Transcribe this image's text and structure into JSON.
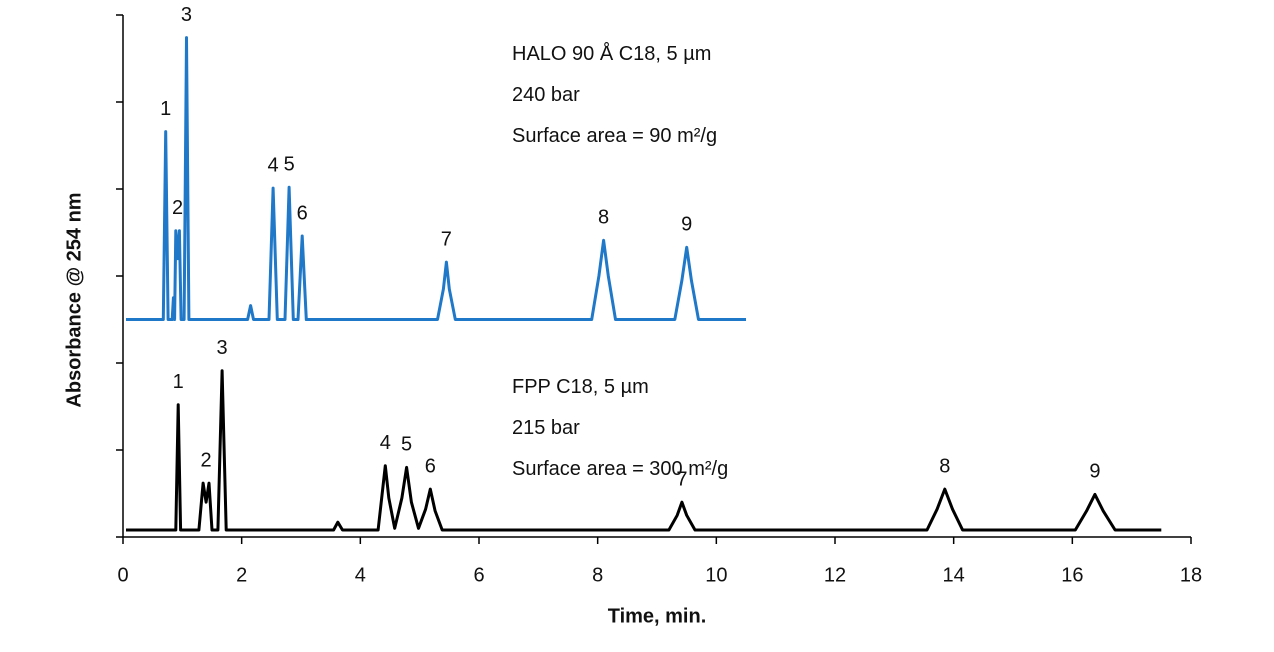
{
  "chart_data": {
    "type": "line",
    "xlabel": "Time, min.",
    "ylabel": "Absorbance @ 254 nm",
    "xlim": [
      0,
      18
    ],
    "xticks": [
      0,
      2,
      4,
      6,
      8,
      10,
      12,
      14,
      16,
      18
    ],
    "ylim": [
      0,
      6
    ],
    "yticks": [
      0,
      1,
      2,
      3,
      4,
      5,
      6
    ],
    "ytick_labels": false,
    "series": [
      {
        "color": "#1f78c8",
        "x": [
          0.05,
          0.68,
          0.72,
          0.76,
          0.83,
          0.85,
          0.87,
          0.89,
          0.92,
          0.95,
          0.98,
          1.03,
          1.07,
          1.11,
          2.1,
          2.15,
          2.2,
          2.46,
          2.53,
          2.6,
          2.73,
          2.8,
          2.87,
          2.95,
          3.02,
          3.09,
          5.3,
          5.4,
          5.45,
          5.5,
          5.6,
          7.9,
          8.02,
          8.1,
          8.18,
          8.3,
          9.3,
          9.42,
          9.5,
          9.58,
          9.7,
          10.5
        ],
        "values": [
          2.5,
          2.5,
          4.66,
          2.5,
          2.5,
          2.75,
          2.5,
          3.52,
          3.2,
          3.52,
          2.5,
          2.5,
          5.74,
          2.5,
          2.5,
          2.66,
          2.5,
          2.5,
          4.01,
          2.5,
          2.5,
          4.02,
          2.5,
          2.5,
          3.46,
          2.5,
          2.5,
          2.85,
          3.16,
          2.85,
          2.5,
          2.5,
          3.0,
          3.41,
          3.0,
          2.5,
          2.5,
          2.95,
          3.33,
          2.95,
          2.5,
          2.5
        ],
        "peaks": [
          {
            "label": "1",
            "x": 0.72
          },
          {
            "label": "2",
            "x": 0.92
          },
          {
            "label": "3",
            "x": 1.07
          },
          {
            "label": "4",
            "x": 2.53
          },
          {
            "label": "5",
            "x": 2.8
          },
          {
            "label": "6",
            "x": 3.02
          },
          {
            "label": "7",
            "x": 5.45
          },
          {
            "label": "8",
            "x": 8.1
          },
          {
            "label": "9",
            "x": 9.5
          }
        ],
        "annotation": [
          "HALO 90 Å C18, 5 µm",
          "240 bar",
          "Surface area = 90 m²/g"
        ]
      },
      {
        "color": "#000000",
        "x": [
          0.05,
          0.89,
          0.93,
          0.97,
          1.28,
          1.35,
          1.4,
          1.45,
          1.5,
          1.6,
          1.67,
          1.74,
          3.55,
          3.62,
          3.7,
          4.3,
          4.36,
          4.42,
          4.48,
          4.58,
          4.7,
          4.78,
          4.86,
          4.98,
          5.1,
          5.18,
          5.26,
          5.38,
          9.2,
          9.34,
          9.42,
          9.5,
          9.64,
          13.55,
          13.72,
          13.85,
          13.98,
          14.15,
          16.05,
          16.24,
          16.38,
          16.52,
          16.72,
          17.5
        ],
        "values": [
          0.08,
          0.08,
          1.52,
          0.08,
          0.08,
          0.62,
          0.4,
          0.62,
          0.08,
          0.08,
          1.91,
          0.08,
          0.08,
          0.17,
          0.08,
          0.08,
          0.45,
          0.82,
          0.45,
          0.1,
          0.45,
          0.8,
          0.4,
          0.1,
          0.32,
          0.55,
          0.3,
          0.08,
          0.08,
          0.25,
          0.4,
          0.25,
          0.08,
          0.08,
          0.32,
          0.55,
          0.32,
          0.08,
          0.08,
          0.3,
          0.49,
          0.3,
          0.08,
          0.08
        ],
        "peaks": [
          {
            "label": "1",
            "x": 0.93
          },
          {
            "label": "2",
            "x": 1.4
          },
          {
            "label": "3",
            "x": 1.67
          },
          {
            "label": "4",
            "x": 4.42
          },
          {
            "label": "5",
            "x": 4.78
          },
          {
            "label": "6",
            "x": 5.18
          },
          {
            "label": "7",
            "x": 9.42
          },
          {
            "label": "8",
            "x": 13.85
          },
          {
            "label": "9",
            "x": 16.38
          }
        ],
        "annotation": [
          "FPP C18, 5 µm",
          "215 bar",
          "Surface area = 300 m²/g"
        ]
      }
    ]
  }
}
